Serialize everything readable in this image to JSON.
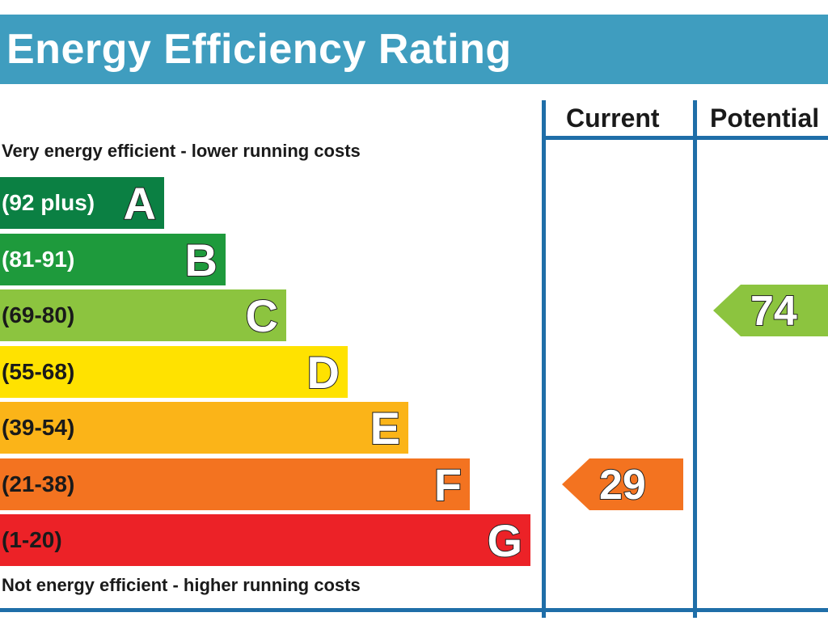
{
  "chart_data": {
    "type": "table",
    "title": "Energy Efficiency Rating",
    "columns": [
      "Current",
      "Potential"
    ],
    "top_note": "Very energy efficient - lower running costs",
    "bottom_note": "Not energy efficient - higher running costs",
    "bands": [
      {
        "letter": "A",
        "range": "(92 plus)",
        "min": 92,
        "color": "#0b8043",
        "text_color": "#ffffff"
      },
      {
        "letter": "B",
        "range": "(81-91)",
        "min": 81,
        "color": "#1e9a3c",
        "text_color": "#ffffff"
      },
      {
        "letter": "C",
        "range": "(69-80)",
        "min": 69,
        "color": "#8cc43f",
        "text_color": "#1a1a1a"
      },
      {
        "letter": "D",
        "range": "(55-68)",
        "min": 55,
        "color": "#ffe200",
        "text_color": "#1a1a1a"
      },
      {
        "letter": "E",
        "range": "(39-54)",
        "min": 39,
        "color": "#fbb418",
        "text_color": "#1a1a1a"
      },
      {
        "letter": "F",
        "range": "(21-38)",
        "min": 21,
        "color": "#f37320",
        "text_color": "#1a1a1a"
      },
      {
        "letter": "G",
        "range": "(1-20)",
        "min": 1,
        "color": "#ec2227",
        "text_color": "#1a1a1a"
      }
    ],
    "current": {
      "value": 29,
      "band": "F"
    },
    "potential": {
      "value": 74,
      "band": "C"
    }
  }
}
